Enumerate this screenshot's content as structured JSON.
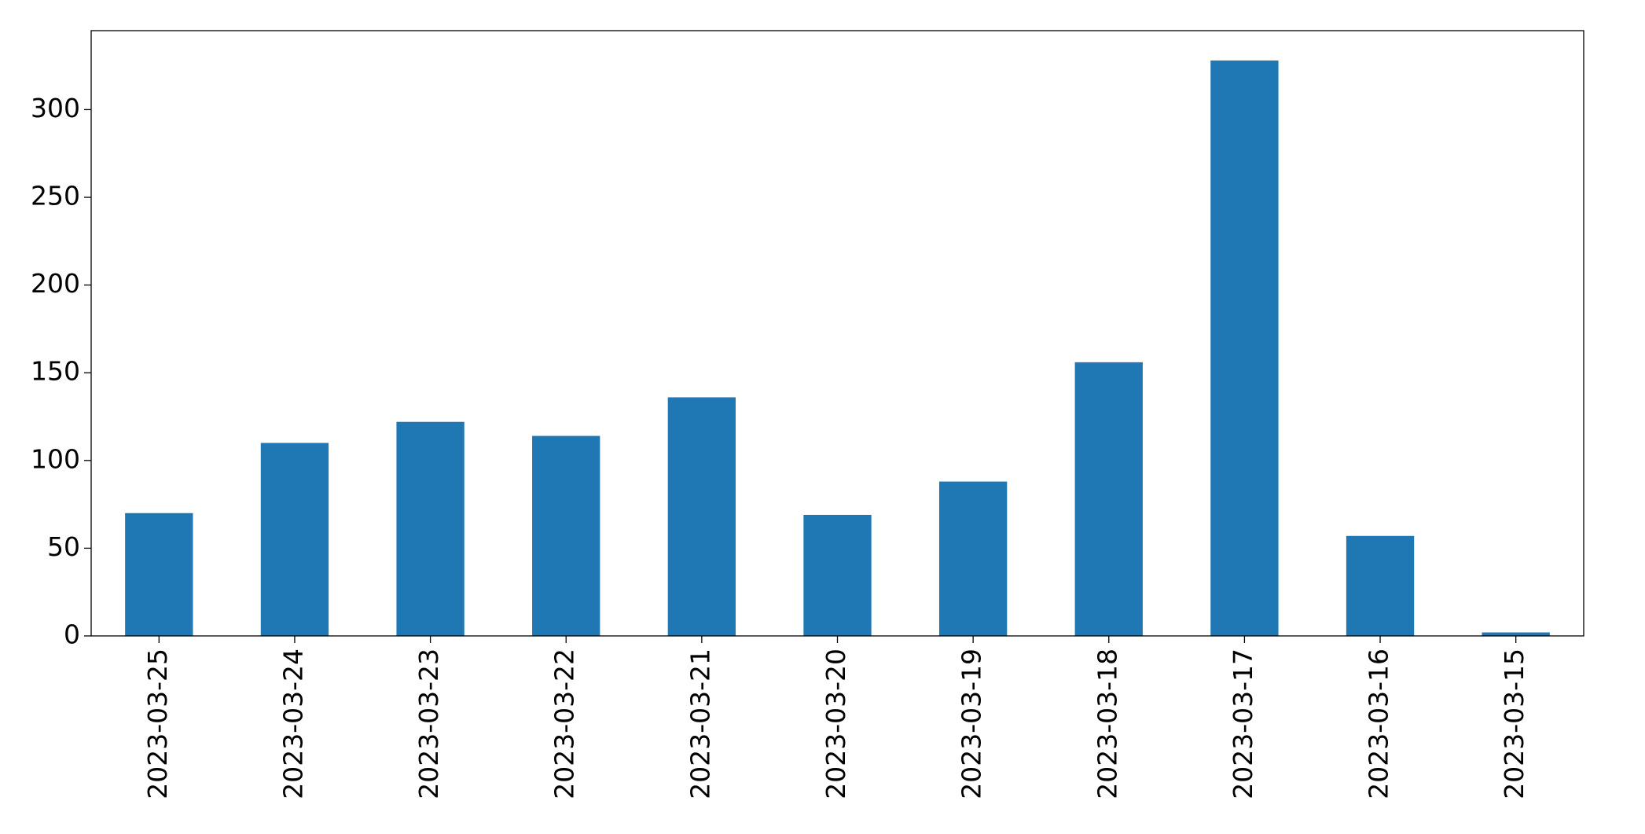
{
  "chart_data": {
    "type": "bar",
    "categories": [
      "2023-03-25",
      "2023-03-24",
      "2023-03-23",
      "2023-03-22",
      "2023-03-21",
      "2023-03-20",
      "2023-03-19",
      "2023-03-18",
      "2023-03-17",
      "2023-03-16",
      "2023-03-15"
    ],
    "values": [
      70,
      110,
      122,
      114,
      136,
      69,
      88,
      156,
      328,
      57,
      2
    ],
    "color": "#1f77b4",
    "ylim": [
      0,
      345
    ],
    "yticks": [
      0,
      50,
      100,
      150,
      200,
      250,
      300
    ],
    "grid": false
  }
}
